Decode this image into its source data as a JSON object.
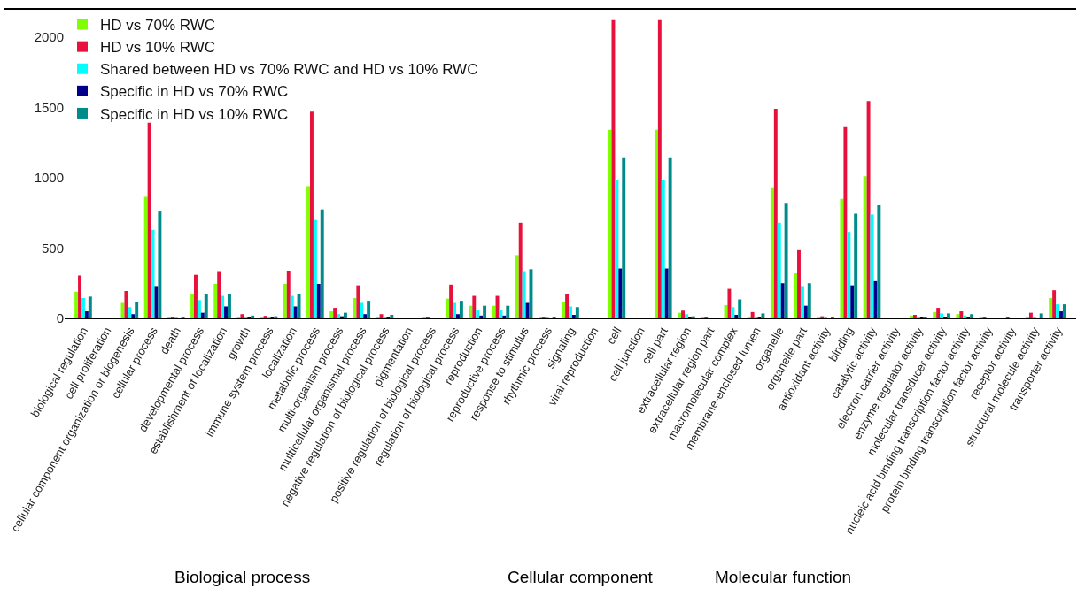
{
  "chart_data": {
    "type": "bar",
    "categories": [
      "biological regulation",
      "cell proliferation",
      "cellular component organization or biogenesis",
      "cellular process",
      "death",
      "developmental process",
      "establishment of localization",
      "growth",
      "immune system process",
      "localization",
      "metabolic process",
      "multi-organism process",
      "multicellular organismal process",
      "negative regulation of biological process",
      "pigmentation",
      "positive regulation of biological process",
      "regulation of biological process",
      "reproduction",
      "reproductive process",
      "response to stimulus",
      "rhythmic process",
      "signaling",
      "viral reproduction",
      "cell",
      "cell junction",
      "cell part",
      "extracellular region",
      "extracellular region part",
      "macromolecular complex",
      "membrane-enclosed lumen",
      "organelle",
      "organelle part",
      "antioxidant activity",
      "binding",
      "catalytic activity",
      "electron carrier activity",
      "enzyme regulator activity",
      "molecular transducer activity",
      "nucleic acid binding transcription factor activity",
      "protein binding transcription factor activity",
      "receptor activity",
      "structural molecule activity",
      "transporter activity"
    ],
    "series": [
      {
        "name": "HD vs 70% RWC",
        "color": "#7fff00",
        "values": [
          190,
          0,
          110,
          865,
          3,
          170,
          245,
          3,
          3,
          245,
          940,
          50,
          145,
          3,
          0,
          3,
          140,
          90,
          90,
          450,
          3,
          115,
          0,
          1340,
          0,
          1340,
          40,
          2,
          95,
          10,
          925,
          320,
          10,
          850,
          1010,
          0,
          20,
          45,
          30,
          2,
          0,
          5,
          145
        ]
      },
      {
        "name": "HD vs 10% RWC",
        "color": "#e8103c",
        "values": [
          305,
          0,
          195,
          1390,
          3,
          310,
          330,
          30,
          18,
          335,
          1470,
          75,
          235,
          30,
          0,
          3,
          240,
          160,
          160,
          680,
          12,
          170,
          0,
          2120,
          0,
          2120,
          55,
          2,
          210,
          45,
          1490,
          485,
          15,
          1360,
          1545,
          0,
          25,
          75,
          50,
          2,
          5,
          40,
          200
        ]
      },
      {
        "name": "Shared between HD vs 70% RWC and HD vs 10% RWC",
        "color": "#00ffff",
        "values": [
          145,
          0,
          80,
          630,
          1,
          130,
          160,
          3,
          5,
          160,
          700,
          30,
          110,
          3,
          0,
          0,
          110,
          60,
          60,
          330,
          3,
          85,
          0,
          980,
          0,
          980,
          30,
          0,
          80,
          5,
          680,
          230,
          10,
          615,
          740,
          0,
          10,
          35,
          20,
          0,
          0,
          3,
          100
        ]
      },
      {
        "name": "Specific in HD vs 70% RWC",
        "color": "#00008b",
        "values": [
          50,
          0,
          30,
          230,
          0,
          40,
          85,
          1,
          2,
          85,
          245,
          15,
          30,
          1,
          0,
          0,
          30,
          20,
          20,
          110,
          0,
          25,
          0,
          355,
          0,
          355,
          3,
          0,
          25,
          5,
          250,
          90,
          0,
          235,
          265,
          0,
          5,
          5,
          5,
          0,
          0,
          0,
          50
        ]
      },
      {
        "name": "Specific in HD vs 10% RWC",
        "color": "#008b8b",
        "values": [
          155,
          0,
          115,
          760,
          1,
          175,
          170,
          20,
          15,
          175,
          775,
          40,
          125,
          25,
          0,
          0,
          125,
          90,
          90,
          350,
          5,
          80,
          0,
          1140,
          0,
          1140,
          15,
          0,
          135,
          35,
          815,
          250,
          3,
          745,
          805,
          0,
          5,
          35,
          30,
          0,
          0,
          35,
          100
        ]
      }
    ],
    "ylim": [
      0,
      2200
    ],
    "yticks": [
      0,
      500,
      1000,
      1500,
      2000
    ],
    "legend": "top left",
    "annotations": [
      "Biological process",
      "Cellular component",
      "Molecular function"
    ]
  }
}
